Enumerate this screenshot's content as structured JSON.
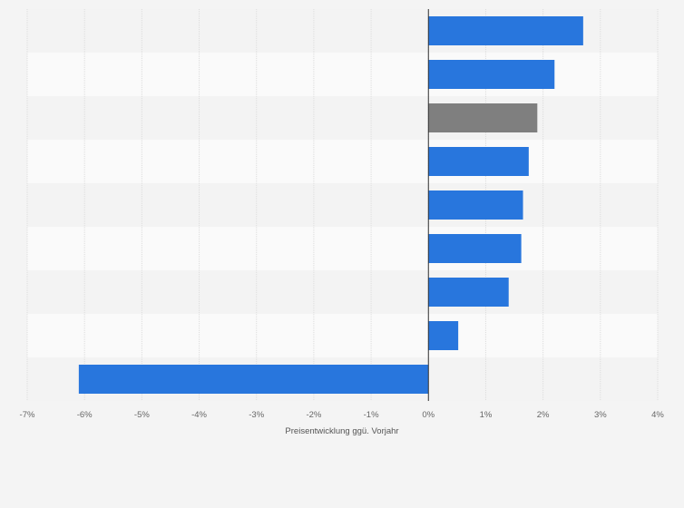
{
  "chart_data": {
    "type": "bar",
    "orientation": "horizontal",
    "categories": [
      "",
      "",
      "",
      "",
      "",
      "",
      "",
      "",
      ""
    ],
    "values": [
      2.7,
      2.2,
      1.9,
      1.75,
      1.65,
      1.62,
      1.4,
      0.52,
      -6.1
    ],
    "bar_colors": [
      "#2876dd",
      "#2876dd",
      "#7f7f7f",
      "#2876dd",
      "#2876dd",
      "#2876dd",
      "#2876dd",
      "#2876dd",
      "#2876dd"
    ],
    "xlim": [
      -7,
      4
    ],
    "xticks": [
      "-7%",
      "-6%",
      "-5%",
      "-4%",
      "-3%",
      "-2%",
      "-1%",
      "0%",
      "1%",
      "2%",
      "3%",
      "4%"
    ],
    "xlabel": "Preisentwicklung ggü. Vorjahr",
    "ylabel": "",
    "title": "",
    "grid": true,
    "legend": "none",
    "colors": {
      "accent": "#2876dd",
      "highlight": "#7f7f7f",
      "background": "#f4f4f4",
      "band_light": "#fafafa",
      "band_dark": "#f3f3f3",
      "gridline": "#dcdcdc",
      "zero_line": "#333333"
    }
  }
}
